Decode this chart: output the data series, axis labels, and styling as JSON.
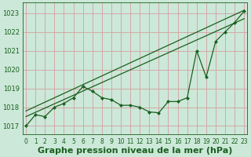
{
  "title": "Graphe pression niveau de la mer (hPa)",
  "bg_color": "#cce8d8",
  "grid_color": "#d4a0a0",
  "line_color": "#1a6020",
  "ylabel_values": [
    1017,
    1018,
    1019,
    1020,
    1021,
    1022,
    1023
  ],
  "xlim": [
    -0.3,
    23.3
  ],
  "ylim": [
    1016.55,
    1023.55
  ],
  "line1_x": [
    0,
    1,
    2,
    3,
    4,
    5,
    6,
    7,
    8,
    9,
    10,
    11,
    12,
    13,
    14,
    15,
    16,
    17,
    18,
    19,
    20,
    21,
    22,
    23
  ],
  "line1": [
    1017.0,
    1017.6,
    1017.5,
    1018.0,
    1018.2,
    1018.5,
    1019.1,
    1018.85,
    1018.5,
    1018.4,
    1018.1,
    1018.1,
    1018.0,
    1017.75,
    1017.7,
    1018.3,
    1018.3,
    1018.5,
    1021.0,
    1019.6,
    1021.5,
    1022.0,
    1022.5,
    1023.1
  ],
  "line2_x": [
    0,
    23
  ],
  "line2": [
    1017.5,
    1022.7
  ],
  "line3_x": [
    0,
    23
  ],
  "line3": [
    1017.8,
    1023.15
  ],
  "xtick_labels": [
    "0",
    "1",
    "2",
    "3",
    "4",
    "5",
    "6",
    "7",
    "8",
    "9",
    "10",
    "11",
    "12",
    "13",
    "14",
    "15",
    "16",
    "17",
    "18",
    "19",
    "20",
    "21",
    "22",
    "23"
  ],
  "title_fontsize": 8.0,
  "tick_fontsize": 6.0,
  "marker_size": 2.5,
  "line_width": 0.9
}
